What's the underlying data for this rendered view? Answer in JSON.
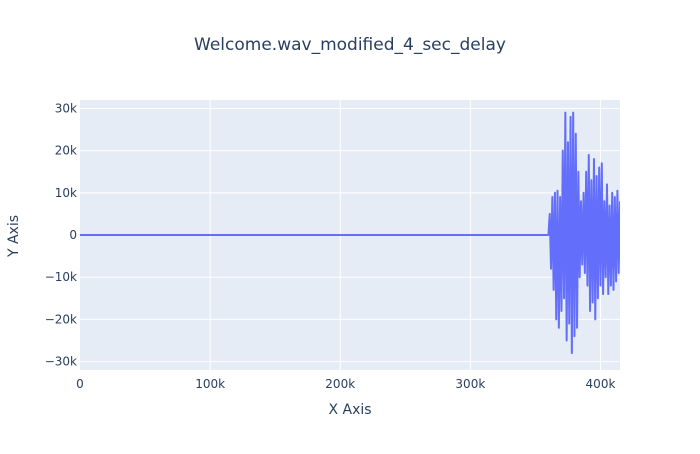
{
  "chart_data": {
    "type": "line",
    "title": "Welcome.wav_modified_4_sec_delay",
    "xlabel": "X Axis",
    "ylabel": "Y Axis",
    "xlim": [
      0,
      415000
    ],
    "ylim": [
      -32000,
      32000
    ],
    "x_ticks": [
      {
        "value": 0,
        "label": "0"
      },
      {
        "value": 100000,
        "label": "100k"
      },
      {
        "value": 200000,
        "label": "200k"
      },
      {
        "value": 300000,
        "label": "300k"
      },
      {
        "value": 400000,
        "label": "400k"
      }
    ],
    "y_ticks": [
      {
        "value": 30000,
        "label": "30k"
      },
      {
        "value": 20000,
        "label": "20k"
      },
      {
        "value": 10000,
        "label": "10k"
      },
      {
        "value": 0,
        "label": "0"
      },
      {
        "value": -10000,
        "label": "−10k"
      },
      {
        "value": -20000,
        "label": "−20k"
      },
      {
        "value": -30000,
        "label": "−30k"
      }
    ],
    "grid": true,
    "line_color": "#636efa",
    "plot_bg": "#e5ecf6",
    "grid_color": "#ffffff",
    "series": [
      {
        "points": [
          [
            0,
            0
          ],
          [
            360000,
            0
          ],
          [
            361000,
            5000
          ],
          [
            362000,
            -8000
          ],
          [
            363000,
            9000
          ],
          [
            364000,
            -13000
          ],
          [
            365000,
            10000
          ],
          [
            366000,
            -20000
          ],
          [
            367000,
            10500
          ],
          [
            368000,
            -22000
          ],
          [
            369000,
            9000
          ],
          [
            370000,
            -18000
          ],
          [
            371000,
            20000
          ],
          [
            372000,
            -15000
          ],
          [
            373000,
            29000
          ],
          [
            374000,
            -25000
          ],
          [
            375000,
            22000
          ],
          [
            376000,
            -21000
          ],
          [
            377000,
            28000
          ],
          [
            378000,
            -28000
          ],
          [
            379000,
            29000
          ],
          [
            380000,
            -24000
          ],
          [
            381000,
            24000
          ],
          [
            382000,
            -22000
          ],
          [
            383000,
            15000
          ],
          [
            384000,
            -10000
          ],
          [
            385000,
            8000
          ],
          [
            386000,
            -7000
          ],
          [
            387000,
            10000
          ],
          [
            388000,
            -9000
          ],
          [
            389000,
            15000
          ],
          [
            390000,
            -12000
          ],
          [
            391000,
            19000
          ],
          [
            392000,
            -18000
          ],
          [
            393000,
            13000
          ],
          [
            394000,
            -16000
          ],
          [
            395000,
            18000
          ],
          [
            396000,
            -20000
          ],
          [
            397000,
            14000
          ],
          [
            398000,
            -15000
          ],
          [
            399000,
            16000
          ],
          [
            400000,
            -12000
          ],
          [
            401000,
            17000
          ],
          [
            402000,
            -14000
          ],
          [
            403000,
            8000
          ],
          [
            404000,
            -10000
          ],
          [
            405000,
            12000
          ],
          [
            406000,
            -14000
          ],
          [
            407000,
            7000
          ],
          [
            408000,
            -12000
          ],
          [
            409000,
            10000
          ],
          [
            410000,
            -13000
          ],
          [
            411000,
            9000
          ],
          [
            412000,
            -11000
          ],
          [
            413000,
            10500
          ],
          [
            414000,
            -9000
          ],
          [
            415000,
            8000
          ]
        ]
      }
    ]
  }
}
